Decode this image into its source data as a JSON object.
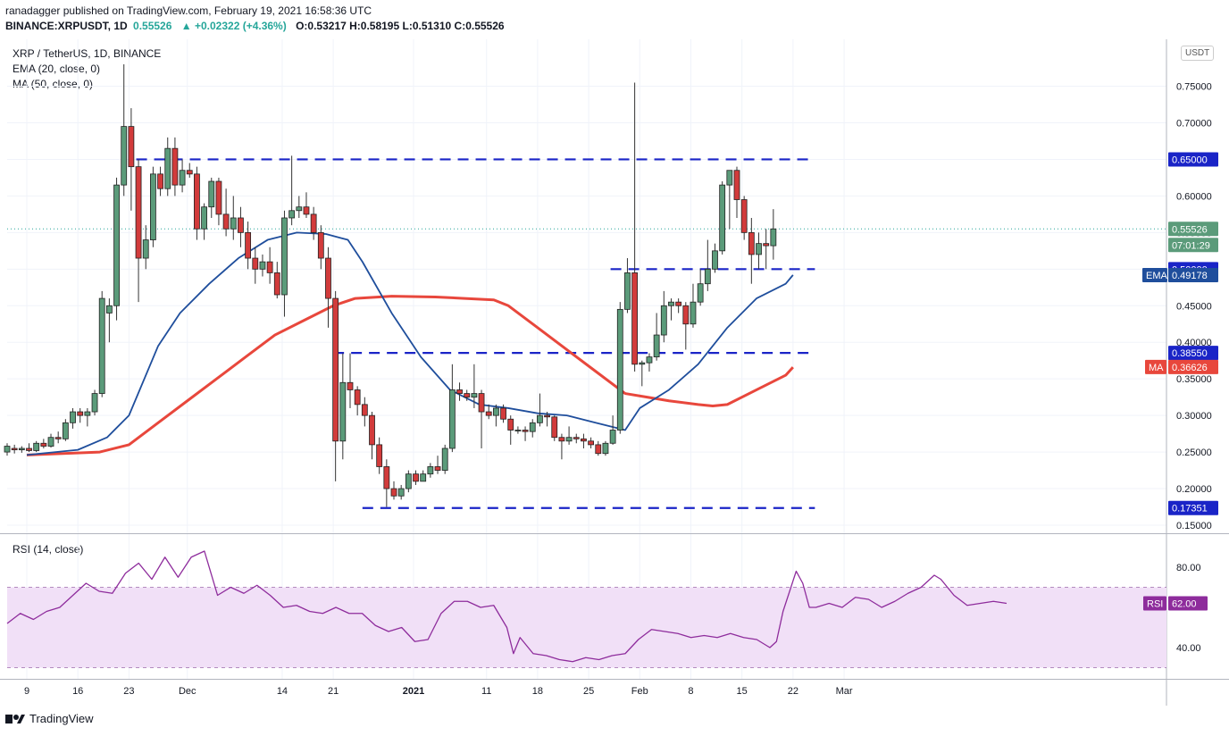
{
  "header": {
    "line1": "ranadagger published on TradingView.com, February 19, 2021 16:58:36 UTC",
    "symbol": "BINANCE:XRPUSDT, 1D",
    "close_value": "0.55526",
    "change": "▲ +0.02322 (+4.36%)",
    "ohlc": "O:0.53217 H:0.58195 L:0.51310 C:0.55526"
  },
  "legends": {
    "symbol": "XRP / TetherUS, 1D, BINANCE",
    "ema": "EMA (20, close, 0)",
    "ma": "MA (50, close, 0)",
    "rsi": "RSI (14, close)"
  },
  "brand": {
    "name": "TradingView"
  },
  "currency_badge": "USDT",
  "colors": {
    "up": "#26a69a",
    "up_fill": "#5b9b7a",
    "down": "#d23b3b",
    "ema": "#1f4e9c",
    "ma": "#e8473c",
    "rsi": "#8e2c9c",
    "level": "#1a24c7",
    "rsi_band": "#f1e0f7"
  },
  "chart_data": [
    {
      "type": "candlestick",
      "title": "XRP / TetherUS, 1D, BINANCE",
      "ylim": [
        0.14,
        0.78
      ],
      "price_ticks": [
        "0.15000",
        "0.20000",
        "0.25000",
        "0.30000",
        "0.35000",
        "0.40000",
        "0.45000",
        "0.50000",
        "0.55000",
        "0.60000",
        "0.65000",
        "0.70000",
        "0.75000"
      ],
      "x_ticks": [
        {
          "label": "9",
          "day": 0
        },
        {
          "label": "16",
          "day": 7
        },
        {
          "label": "23",
          "day": 14
        },
        {
          "label": "Dec",
          "day": 22
        },
        {
          "label": "14",
          "day": 35
        },
        {
          "label": "21",
          "day": 42
        },
        {
          "label": "2021",
          "day": 53
        },
        {
          "label": "11",
          "day": 63
        },
        {
          "label": "18",
          "day": 70
        },
        {
          "label": "25",
          "day": 77
        },
        {
          "label": "Feb",
          "day": 84
        },
        {
          "label": "8",
          "day": 91
        },
        {
          "label": "15",
          "day": 98
        },
        {
          "label": "22",
          "day": 105
        },
        {
          "label": "Mar",
          "day": 112
        }
      ],
      "candles": [
        [
          0.25,
          0.262,
          0.245,
          0.258
        ],
        [
          0.255,
          0.26,
          0.248,
          0.253
        ],
        [
          0.253,
          0.258,
          0.249,
          0.255
        ],
        [
          0.255,
          0.262,
          0.25,
          0.252
        ],
        [
          0.252,
          0.265,
          0.25,
          0.262
        ],
        [
          0.262,
          0.268,
          0.255,
          0.258
        ],
        [
          0.258,
          0.275,
          0.256,
          0.27
        ],
        [
          0.27,
          0.278,
          0.262,
          0.268
        ],
        [
          0.268,
          0.295,
          0.265,
          0.29
        ],
        [
          0.29,
          0.31,
          0.282,
          0.305
        ],
        [
          0.305,
          0.31,
          0.29,
          0.3
        ],
        [
          0.3,
          0.31,
          0.285,
          0.305
        ],
        [
          0.305,
          0.335,
          0.3,
          0.33
        ],
        [
          0.33,
          0.47,
          0.325,
          0.46
        ],
        [
          0.44,
          0.46,
          0.4,
          0.45
        ],
        [
          0.45,
          0.625,
          0.43,
          0.615
        ],
        [
          0.615,
          0.78,
          0.6,
          0.695
        ],
        [
          0.695,
          0.72,
          0.58,
          0.64
        ],
        [
          0.64,
          0.65,
          0.455,
          0.515
        ],
        [
          0.515,
          0.56,
          0.5,
          0.54
        ],
        [
          0.54,
          0.64,
          0.53,
          0.63
        ],
        [
          0.63,
          0.64,
          0.6,
          0.61
        ],
        [
          0.61,
          0.68,
          0.6,
          0.665
        ],
        [
          0.665,
          0.68,
          0.6,
          0.615
        ],
        [
          0.615,
          0.65,
          0.605,
          0.635
        ],
        [
          0.635,
          0.645,
          0.625,
          0.63
        ],
        [
          0.63,
          0.64,
          0.54,
          0.555
        ],
        [
          0.555,
          0.59,
          0.54,
          0.585
        ],
        [
          0.585,
          0.625,
          0.57,
          0.62
        ],
        [
          0.62,
          0.625,
          0.56,
          0.575
        ],
        [
          0.575,
          0.61,
          0.545,
          0.555
        ],
        [
          0.555,
          0.6,
          0.54,
          0.57
        ],
        [
          0.57,
          0.585,
          0.53,
          0.55
        ],
        [
          0.55,
          0.565,
          0.5,
          0.515
        ],
        [
          0.515,
          0.53,
          0.48,
          0.5
        ],
        [
          0.5,
          0.52,
          0.49,
          0.51
        ],
        [
          0.51,
          0.53,
          0.48,
          0.495
        ],
        [
          0.495,
          0.51,
          0.46,
          0.465
        ],
        [
          0.465,
          0.58,
          0.435,
          0.57
        ],
        [
          0.57,
          0.655,
          0.56,
          0.58
        ],
        [
          0.58,
          0.6,
          0.57,
          0.585
        ],
        [
          0.585,
          0.605,
          0.57,
          0.575
        ],
        [
          0.575,
          0.585,
          0.54,
          0.55
        ],
        [
          0.55,
          0.56,
          0.5,
          0.515
        ],
        [
          0.515,
          0.53,
          0.42,
          0.46
        ],
        [
          0.46,
          0.47,
          0.21,
          0.265
        ],
        [
          0.265,
          0.385,
          0.24,
          0.345
        ],
        [
          0.345,
          0.385,
          0.31,
          0.335
        ],
        [
          0.335,
          0.34,
          0.3,
          0.315
        ],
        [
          0.315,
          0.325,
          0.285,
          0.3
        ],
        [
          0.3,
          0.305,
          0.24,
          0.26
        ],
        [
          0.26,
          0.27,
          0.22,
          0.23
        ],
        [
          0.23,
          0.24,
          0.175,
          0.2
        ],
        [
          0.2,
          0.21,
          0.185,
          0.19
        ],
        [
          0.19,
          0.205,
          0.185,
          0.2
        ],
        [
          0.2,
          0.225,
          0.195,
          0.22
        ],
        [
          0.22,
          0.225,
          0.205,
          0.21
        ],
        [
          0.21,
          0.225,
          0.21,
          0.22
        ],
        [
          0.22,
          0.235,
          0.215,
          0.23
        ],
        [
          0.23,
          0.245,
          0.22,
          0.225
        ],
        [
          0.225,
          0.26,
          0.22,
          0.255
        ],
        [
          0.255,
          0.37,
          0.25,
          0.335
        ],
        [
          0.335,
          0.345,
          0.32,
          0.33
        ],
        [
          0.33,
          0.335,
          0.32,
          0.325
        ],
        [
          0.325,
          0.37,
          0.31,
          0.33
        ],
        [
          0.33,
          0.335,
          0.255,
          0.305
        ],
        [
          0.305,
          0.315,
          0.295,
          0.3
        ],
        [
          0.3,
          0.315,
          0.285,
          0.31
        ],
        [
          0.31,
          0.315,
          0.29,
          0.295
        ],
        [
          0.295,
          0.3,
          0.26,
          0.28
        ],
        [
          0.28,
          0.285,
          0.275,
          0.28
        ],
        [
          0.28,
          0.285,
          0.265,
          0.278
        ],
        [
          0.278,
          0.295,
          0.27,
          0.29
        ],
        [
          0.29,
          0.33,
          0.285,
          0.3
        ],
        [
          0.3,
          0.305,
          0.285,
          0.298
        ],
        [
          0.298,
          0.3,
          0.265,
          0.27
        ],
        [
          0.27,
          0.275,
          0.24,
          0.265
        ],
        [
          0.265,
          0.285,
          0.26,
          0.27
        ],
        [
          0.27,
          0.275,
          0.262,
          0.268
        ],
        [
          0.268,
          0.275,
          0.255,
          0.265
        ],
        [
          0.265,
          0.27,
          0.255,
          0.26
        ],
        [
          0.26,
          0.265,
          0.245,
          0.248
        ],
        [
          0.248,
          0.265,
          0.245,
          0.262
        ],
        [
          0.262,
          0.3,
          0.26,
          0.28
        ],
        [
          0.28,
          0.455,
          0.275,
          0.445
        ],
        [
          0.445,
          0.515,
          0.44,
          0.495
        ],
        [
          0.495,
          0.755,
          0.36,
          0.37
        ],
        [
          0.37,
          0.375,
          0.34,
          0.372
        ],
        [
          0.372,
          0.385,
          0.36,
          0.38
        ],
        [
          0.38,
          0.44,
          0.375,
          0.41
        ],
        [
          0.41,
          0.47,
          0.4,
          0.45
        ],
        [
          0.45,
          0.46,
          0.43,
          0.455
        ],
        [
          0.455,
          0.46,
          0.44,
          0.45
        ],
        [
          0.45,
          0.455,
          0.39,
          0.425
        ],
        [
          0.425,
          0.48,
          0.42,
          0.455
        ],
        [
          0.455,
          0.5,
          0.45,
          0.48
        ],
        [
          0.48,
          0.54,
          0.47,
          0.5
        ],
        [
          0.5,
          0.535,
          0.495,
          0.525
        ],
        [
          0.525,
          0.62,
          0.52,
          0.615
        ],
        [
          0.615,
          0.635,
          0.555,
          0.635
        ],
        [
          0.635,
          0.64,
          0.57,
          0.595
        ],
        [
          0.595,
          0.6,
          0.54,
          0.55
        ],
        [
          0.55,
          0.57,
          0.48,
          0.52
        ],
        [
          0.52,
          0.55,
          0.5,
          0.535
        ],
        [
          0.535,
          0.555,
          0.5,
          0.532
        ],
        [
          0.532,
          0.582,
          0.513,
          0.555
        ]
      ],
      "ema20": [
        [
          0,
          0.246
        ],
        [
          7,
          0.253
        ],
        [
          11,
          0.27
        ],
        [
          14,
          0.3
        ],
        [
          18,
          0.395
        ],
        [
          21,
          0.44
        ],
        [
          25,
          0.48
        ],
        [
          29,
          0.515
        ],
        [
          33,
          0.54
        ],
        [
          37,
          0.55
        ],
        [
          41,
          0.548
        ],
        [
          44,
          0.54
        ],
        [
          46,
          0.51
        ],
        [
          50,
          0.44
        ],
        [
          54,
          0.38
        ],
        [
          58,
          0.335
        ],
        [
          62,
          0.315
        ],
        [
          66,
          0.31
        ],
        [
          70,
          0.303
        ],
        [
          74,
          0.3
        ],
        [
          78,
          0.29
        ],
        [
          82,
          0.28
        ],
        [
          84,
          0.31
        ],
        [
          88,
          0.335
        ],
        [
          92,
          0.37
        ],
        [
          96,
          0.42
        ],
        [
          100,
          0.46
        ],
        [
          104,
          0.48
        ],
        [
          105,
          0.492
        ]
      ],
      "ma50": [
        [
          0,
          0.246
        ],
        [
          10,
          0.25
        ],
        [
          14,
          0.26
        ],
        [
          18,
          0.29
        ],
        [
          22,
          0.32
        ],
        [
          26,
          0.35
        ],
        [
          30,
          0.38
        ],
        [
          34,
          0.41
        ],
        [
          38,
          0.43
        ],
        [
          42,
          0.45
        ],
        [
          45,
          0.46
        ],
        [
          50,
          0.463
        ],
        [
          56,
          0.462
        ],
        [
          60,
          0.46
        ],
        [
          64,
          0.458
        ],
        [
          66,
          0.45
        ],
        [
          70,
          0.42
        ],
        [
          74,
          0.39
        ],
        [
          78,
          0.36
        ],
        [
          82,
          0.33
        ],
        [
          85,
          0.325
        ],
        [
          88,
          0.32
        ],
        [
          92,
          0.315
        ],
        [
          94,
          0.313
        ],
        [
          96,
          0.315
        ],
        [
          100,
          0.335
        ],
        [
          104,
          0.355
        ],
        [
          105,
          0.366
        ]
      ],
      "levels": [
        {
          "price": 0.65,
          "label": "0.65000",
          "from_day": 15,
          "to_day": 108
        },
        {
          "price": 0.5,
          "label": "0.50000",
          "from_day": 80,
          "to_day": 108
        },
        {
          "price": 0.3855,
          "label": "0.38550",
          "from_day": 42,
          "to_day": 108
        },
        {
          "price": 0.17351,
          "label": "0.17351",
          "from_day": 46,
          "to_day": 108
        }
      ],
      "labels": {
        "last": "0.55526",
        "countdown": "07:01:29",
        "ema_tag": "EMA",
        "ema_value": "0.49178",
        "ma_tag": "MA",
        "ma_value": "0.36626"
      }
    },
    {
      "type": "line",
      "title": "RSI (14, close)",
      "ylim": [
        30,
        95
      ],
      "band": [
        30,
        70
      ],
      "ticks": [
        "40.00",
        "80.00"
      ],
      "rsi": [
        [
          0,
          52
        ],
        [
          2,
          57
        ],
        [
          4,
          54
        ],
        [
          6,
          58
        ],
        [
          8,
          60
        ],
        [
          10,
          66
        ],
        [
          12,
          72
        ],
        [
          14,
          68
        ],
        [
          16,
          67
        ],
        [
          18,
          77
        ],
        [
          20,
          82
        ],
        [
          22,
          74
        ],
        [
          24,
          85
        ],
        [
          26,
          75
        ],
        [
          28,
          85
        ],
        [
          30,
          88
        ],
        [
          32,
          66
        ],
        [
          34,
          70
        ],
        [
          36,
          67
        ],
        [
          38,
          71
        ],
        [
          40,
          66
        ],
        [
          42,
          60
        ],
        [
          44,
          61
        ],
        [
          46,
          58
        ],
        [
          48,
          57
        ],
        [
          50,
          60
        ],
        [
          52,
          57
        ],
        [
          54,
          57
        ],
        [
          56,
          51
        ],
        [
          58,
          48
        ],
        [
          60,
          50
        ],
        [
          62,
          43
        ],
        [
          64,
          44
        ],
        [
          66,
          57
        ],
        [
          68,
          63
        ],
        [
          70,
          63
        ],
        [
          72,
          60
        ],
        [
          74,
          61
        ],
        [
          76,
          50
        ],
        [
          77,
          37
        ],
        [
          78,
          45
        ],
        [
          80,
          37
        ],
        [
          82,
          36
        ],
        [
          84,
          34
        ],
        [
          86,
          33
        ],
        [
          88,
          35
        ],
        [
          90,
          34
        ],
        [
          92,
          36
        ],
        [
          94,
          37
        ],
        [
          96,
          44
        ],
        [
          98,
          49
        ],
        [
          100,
          48
        ],
        [
          102,
          47
        ],
        [
          104,
          45
        ],
        [
          106,
          46
        ],
        [
          108,
          45
        ],
        [
          110,
          47
        ],
        [
          112,
          45
        ],
        [
          114,
          44
        ],
        [
          116,
          40
        ],
        [
          117,
          43
        ],
        [
          118,
          58
        ],
        [
          120,
          78
        ],
        [
          121,
          72
        ],
        [
          122,
          60
        ],
        [
          123,
          60
        ],
        [
          125,
          62
        ],
        [
          127,
          60
        ],
        [
          129,
          65
        ],
        [
          131,
          64
        ],
        [
          133,
          60
        ],
        [
          135,
          63
        ],
        [
          137,
          67
        ],
        [
          139,
          70
        ],
        [
          141,
          76
        ],
        [
          142,
          74
        ],
        [
          144,
          66
        ],
        [
          146,
          61
        ],
        [
          148,
          62
        ],
        [
          150,
          63
        ],
        [
          152,
          62
        ]
      ]
    }
  ]
}
